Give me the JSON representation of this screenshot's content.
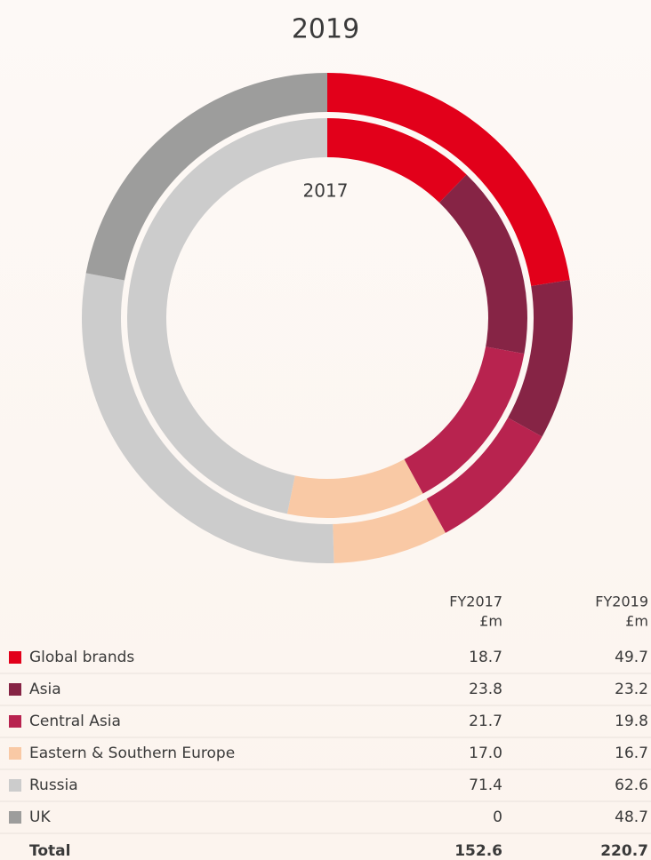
{
  "chart_data": {
    "type": "donut",
    "categories": [
      "Global brands",
      "Asia",
      "Central Asia",
      "Eastern & Southern Europe",
      "Russia",
      "UK"
    ],
    "colors": [
      "#e2001a",
      "#862445",
      "#b8234f",
      "#f9c9a5",
      "#cccccc",
      "#9d9d9c"
    ],
    "series": [
      {
        "name": "2017",
        "header": [
          "FY2017",
          "£m"
        ],
        "values": [
          18.7,
          23.8,
          21.7,
          17.0,
          71.4,
          0
        ],
        "value_labels": [
          "18.7",
          "23.8",
          "21.7",
          "17.0",
          "71.4",
          "0"
        ],
        "total": 152.6
      },
      {
        "name": "2019",
        "header": [
          "FY2019",
          "£m"
        ],
        "values": [
          49.7,
          23.2,
          19.8,
          16.7,
          62.6,
          48.7
        ],
        "value_labels": [
          "49.7",
          "23.2",
          "19.8",
          "16.7",
          "62.6",
          "48.7"
        ],
        "total": 220.7
      }
    ],
    "total_label": "Total"
  }
}
